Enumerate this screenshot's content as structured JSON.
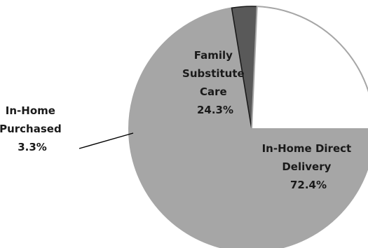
{
  "chart_data": {
    "type": "pie",
    "title": "",
    "start_angle_deg": 0,
    "direction": "clockwise",
    "slices": [
      {
        "label_lines": [
          "In-Home Direct",
          "Delivery"
        ],
        "value_label": "72.4%",
        "value": 72.4,
        "color": "#a6a6a6"
      },
      {
        "label_lines": [
          "In-Home",
          "Purchased"
        ],
        "value_label": "3.3%",
        "value": 3.3,
        "color": "#595959"
      },
      {
        "label_lines": [
          "Family",
          "Substitute",
          "Care"
        ],
        "value_label": "24.3%",
        "value": 24.3,
        "color": "#ffffff"
      }
    ],
    "stroke_color": "#a6a6a6",
    "leader_line_color": "#000000"
  }
}
